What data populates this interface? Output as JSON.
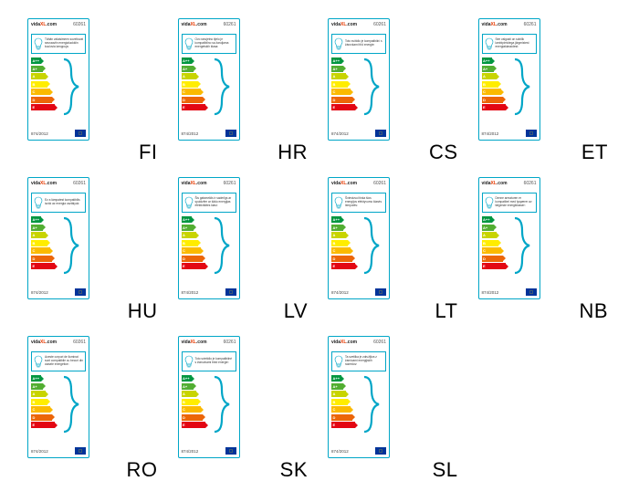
{
  "brand_prefix": "vida",
  "brand_xl": "XL",
  "brand_suffix": ".com",
  "product_code": "60261",
  "regulation": "874/2012",
  "border_color": "#00a6c7",
  "infobox_border_color": "#00a6c7",
  "bracket_color": "#00a6c7",
  "bulb_stroke": "#00a6c7",
  "label_bg": "#ffffff",
  "ratings": [
    {
      "grade": "A++",
      "color": "#009640",
      "width": 11
    },
    {
      "grade": "A+",
      "color": "#52ae32",
      "width": 13
    },
    {
      "grade": "A",
      "color": "#c8d400",
      "width": 16
    },
    {
      "grade": "B",
      "color": "#ffed00",
      "width": 18
    },
    {
      "grade": "C",
      "color": "#fbba00",
      "width": 21
    },
    {
      "grade": "D",
      "color": "#ec6608",
      "width": 23
    },
    {
      "grade": "E",
      "color": "#e30613",
      "width": 26
    }
  ],
  "labels": [
    {
      "code": "FI",
      "text": "Tähän valaisimeen soveltuvat seuraaviin energialuokkiin kuuluvia lamppuja:"
    },
    {
      "code": "HR",
      "text": "Ovo rasvjetno tijelo je kompatibilno sa žaruljama energetskih klasa:"
    },
    {
      "code": "CS",
      "text": "Toto svítidlo je kompatibilní s žárovkami tříd energie:"
    },
    {
      "code": "ET",
      "text": "See valgusti on sobilik lambipirnidega järgmistest energiaklassidest:"
    },
    {
      "code": "HU",
      "text": "Ez a lámpatest kompatibilis izzók az energia osztályok:"
    },
    {
      "code": "LV",
      "text": "Šis gaismeklis ir saderīgs ar spuldzēm ar šādu energijas efektivitātes klasi:"
    },
    {
      "code": "LT",
      "text": "Šviestuvui tinka šios energijos efektyvumo klasės lemputės:"
    },
    {
      "code": "NB",
      "text": "Denne armaturen er kompatibel med lyspærer av følgende energiklasser:"
    },
    {
      "code": "RO",
      "text": "Aceste corpuri de iluminat sunt compatibile cu becuri din clasele energetice:"
    },
    {
      "code": "SK",
      "text": "Toto svietidlo je kompatibilné s žiarovkami tried energie:"
    },
    {
      "code": "SL",
      "text": "Ta svetilka je združljiva z žarnicami energijskih razredov:"
    }
  ]
}
